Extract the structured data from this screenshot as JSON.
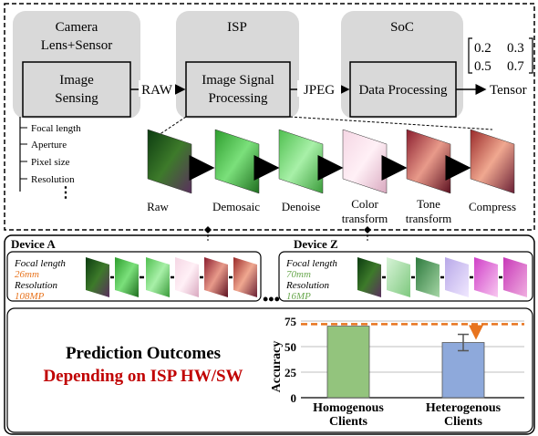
{
  "pipeline": {
    "camera_block": {
      "line1": "Camera",
      "line2": "Lens+Sensor",
      "inner_line1": "Image",
      "inner_line2": "Sensing"
    },
    "isp_block": {
      "title": "ISP",
      "inner_line1": "Image Signal",
      "inner_line2": "Processing"
    },
    "soc_block": {
      "title": "SoC",
      "inner": "Data Processing"
    },
    "arrow_labels": {
      "raw": "RAW",
      "jpeg": "JPEG",
      "tensor": "Tensor"
    },
    "matrix": {
      "row1": [
        "0.2",
        "0.3"
      ],
      "row2": [
        "0.5",
        "0.7"
      ]
    },
    "sensor_params": [
      "Focal length",
      "Aperture",
      "Pixel size",
      "Resolution"
    ],
    "stages": [
      "Raw",
      "Demosaic",
      "Denoise",
      "Color transform",
      "Tone transform",
      "Compress"
    ]
  },
  "devices": {
    "a": {
      "name": "Device A",
      "focal_label": "Focal length",
      "focal_value": "26mm",
      "res_label": "Resolution",
      "res_value": "108MP"
    },
    "z": {
      "name": "Device Z",
      "focal_label": "Focal length",
      "focal_value": "70mm",
      "res_label": "Resolution",
      "res_value": "16MP"
    }
  },
  "outcome": {
    "line1": "Prediction Outcomes",
    "line2": "Depending on ISP HW/SW"
  },
  "colors": {
    "orange": "#E8741E",
    "red": "#C00000",
    "green_bar": "#93C47D",
    "blue_bar": "#8EA9DB",
    "box_gray": "#D9D9D9"
  },
  "chart_data": {
    "type": "bar",
    "ylabel": "Accuracy",
    "yticks": [
      "0",
      "25",
      "50",
      "75"
    ],
    "ylim": [
      0,
      75
    ],
    "categories": [
      "Homogenous Clients",
      "Heterogenous Clients"
    ],
    "category_lines": [
      [
        "Homogenous",
        "Clients"
      ],
      [
        "Heterogenous",
        "Clients"
      ]
    ],
    "values": [
      70,
      54
    ],
    "error": [
      0,
      8
    ],
    "reference_line": 72
  }
}
